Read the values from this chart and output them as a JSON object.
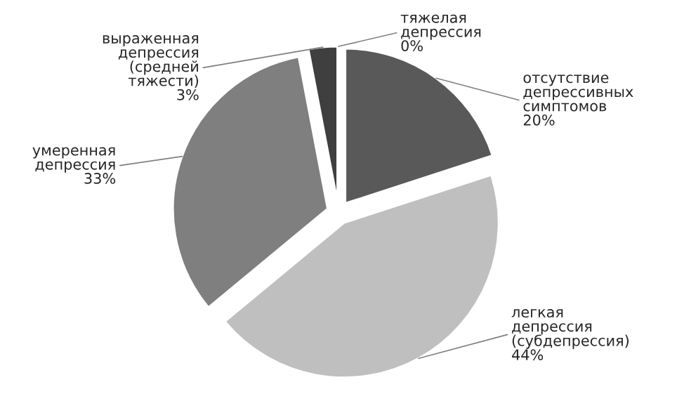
{
  "chart_data": {
    "type": "pie",
    "categories": [
      "отсутствие\nдепрессивных\nсимптомов",
      "легкая\nдепрессия\n(субдепрессия)",
      "умеренная\nдепрессия",
      "выраженная\nдепрессия\n(средней\nтяжести)",
      "тяжелая\nдепрессия"
    ],
    "values": [
      20,
      44,
      33,
      3,
      0
    ],
    "colors": [
      "#595959",
      "#bfbfbf",
      "#7f7f7f",
      "#3f3f3f",
      "#262626"
    ],
    "value_labels": [
      "20%",
      "44%",
      "33%",
      "3%",
      "0%"
    ],
    "legend": false
  }
}
